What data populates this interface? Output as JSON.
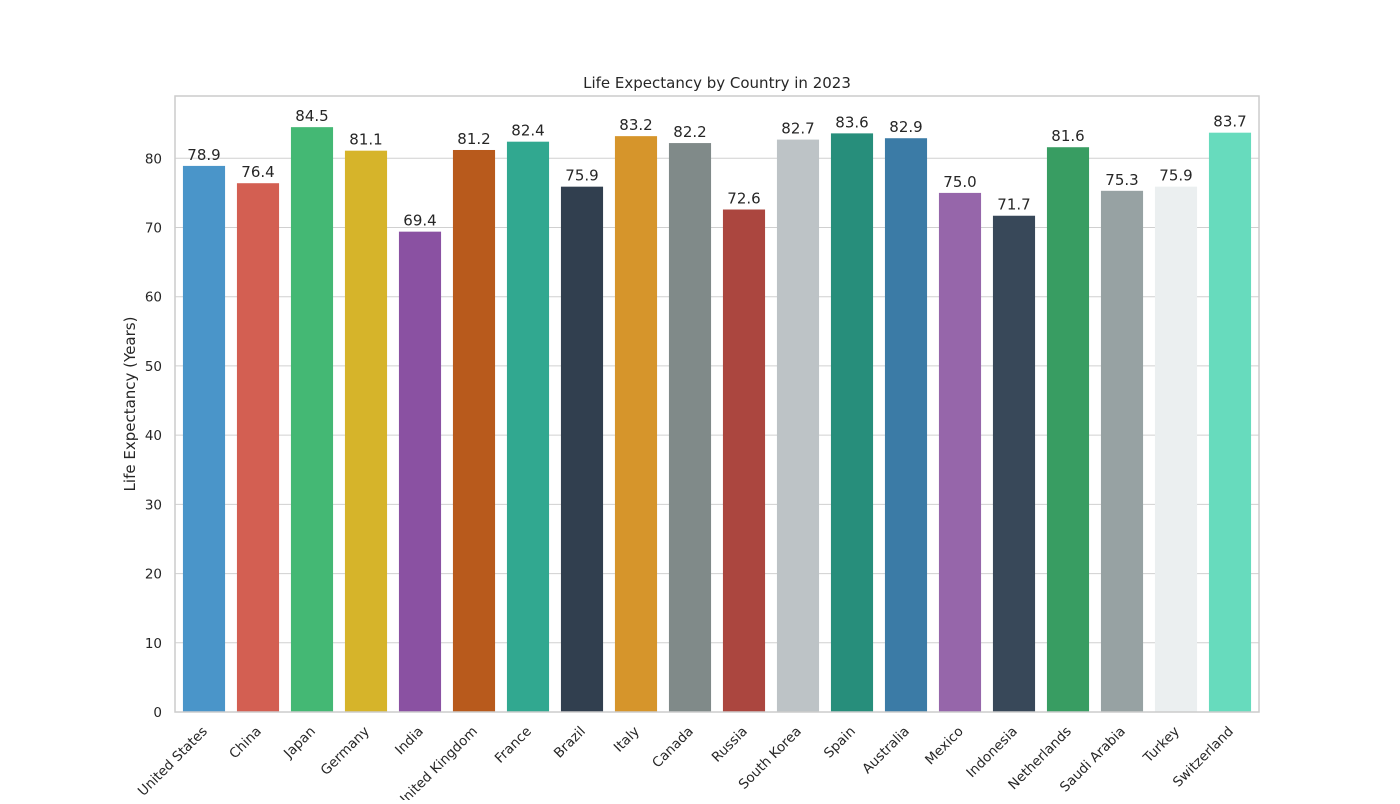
{
  "chart_data": {
    "type": "bar",
    "title": "Life Expectancy by Country in 2023",
    "xlabel": "",
    "ylabel": "Life Expectancy (Years)",
    "ylim": [
      0,
      89
    ],
    "yticks": [
      0,
      10,
      20,
      30,
      40,
      50,
      60,
      70,
      80
    ],
    "grid": "horizontal",
    "categories": [
      "United States",
      "China",
      "Japan",
      "Germany",
      "India",
      "United Kingdom",
      "France",
      "Brazil",
      "Italy",
      "Canada",
      "Russia",
      "South Korea",
      "Spain",
      "Australia",
      "Mexico",
      "Indonesia",
      "Netherlands",
      "Saudi Arabia",
      "Turkey",
      "Switzerland"
    ],
    "values": [
      78.9,
      76.4,
      84.5,
      81.1,
      69.4,
      81.2,
      82.4,
      75.9,
      83.2,
      82.2,
      72.6,
      82.7,
      83.6,
      82.9,
      75.0,
      71.7,
      81.6,
      75.3,
      75.9,
      83.7
    ],
    "value_labels": [
      "78.9",
      "76.4",
      "84.5",
      "81.1",
      "69.4",
      "81.2",
      "82.4",
      "75.9",
      "83.2",
      "82.2",
      "72.6",
      "82.7",
      "83.6",
      "82.9",
      "75.0",
      "71.7",
      "81.6",
      "75.3",
      "75.9",
      "83.7"
    ],
    "colors": [
      "#4a95c9",
      "#d35f52",
      "#44b874",
      "#d6b42a",
      "#8a51a2",
      "#b85a1c",
      "#31a890",
      "#313f4f",
      "#d6952b",
      "#808a89",
      "#ab463f",
      "#bdc3c6",
      "#278e7b",
      "#3b7ba6",
      "#9666aa",
      "#384859",
      "#389d62",
      "#97a2a3",
      "#ebeff0",
      "#67dbbd"
    ]
  }
}
